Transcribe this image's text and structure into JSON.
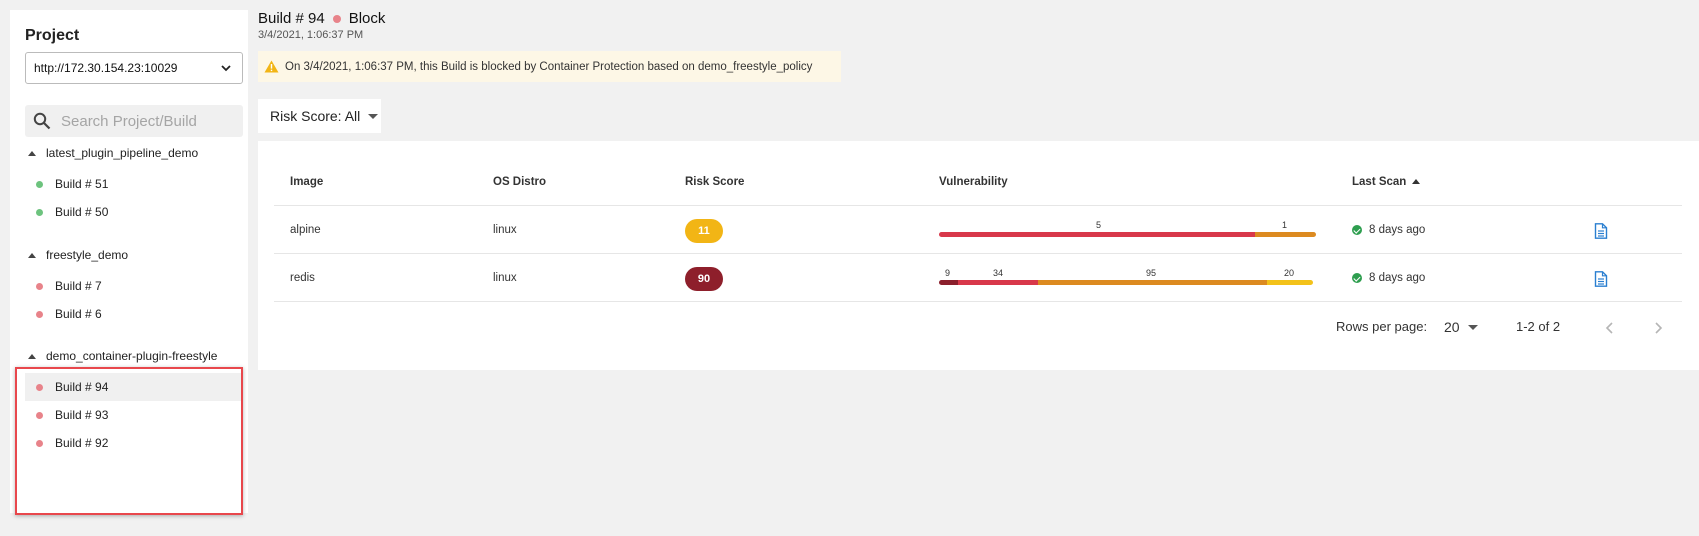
{
  "sidebar": {
    "title": "Project",
    "project_url": "http://172.30.154.23:10029",
    "search_placeholder": "Search Project/Build",
    "groups": [
      {
        "name": "latest_plugin_pipeline_demo",
        "builds": [
          {
            "label": "Build # 51",
            "status": "pass"
          },
          {
            "label": "Build # 50",
            "status": "pass"
          }
        ]
      },
      {
        "name": "freestyle_demo",
        "builds": [
          {
            "label": "Build # 7",
            "status": "block"
          },
          {
            "label": "Build # 6",
            "status": "block"
          }
        ]
      },
      {
        "name": "demo_container-plugin-freestyle",
        "builds": [
          {
            "label": "Build # 94",
            "status": "block",
            "selected": true
          },
          {
            "label": "Build # 93",
            "status": "block"
          },
          {
            "label": "Build # 92",
            "status": "block"
          }
        ]
      }
    ]
  },
  "colors": {
    "pass": "#6dc37e",
    "block": "#e8838a",
    "critical": "#8b1f2c",
    "high": "#d8384a",
    "medium": "#dc8a20",
    "low": "#f3c21a",
    "badge_low": "#f2b515",
    "badge_critical": "#8e1f2b",
    "link_blue": "#2a7fd0"
  },
  "build": {
    "title": "Build # 94",
    "status": "Block",
    "date": "3/4/2021, 1:06:37 PM",
    "warning": "On 3/4/2021, 1:06:37 PM, this Build is blocked by Container Protection based on demo_freestyle_policy"
  },
  "filter": {
    "label": "Risk Score: All"
  },
  "table": {
    "headers": {
      "image": "Image",
      "os": "OS Distro",
      "risk": "Risk Score",
      "vuln": "Vulnerability",
      "scan": "Last Scan"
    },
    "rows": [
      {
        "image": "alpine",
        "os": "linux",
        "risk": "11",
        "risk_level": "low",
        "vuln": [
          {
            "severity": "high",
            "count": 5
          },
          {
            "severity": "medium",
            "count": 1
          }
        ],
        "last_scan": "8 days ago",
        "report_icon": "document-icon"
      },
      {
        "image": "redis",
        "os": "linux",
        "risk": "90",
        "risk_level": "critical",
        "vuln": [
          {
            "severity": "critical",
            "count": 9
          },
          {
            "severity": "high",
            "count": 34
          },
          {
            "severity": "medium",
            "count": 95
          },
          {
            "severity": "low",
            "count": 20
          }
        ],
        "last_scan": "8 days ago",
        "report_icon": "document-icon"
      }
    ]
  },
  "pagination": {
    "rows_label": "Rows per page:",
    "rows_value": "20",
    "range": "1-2 of 2"
  }
}
